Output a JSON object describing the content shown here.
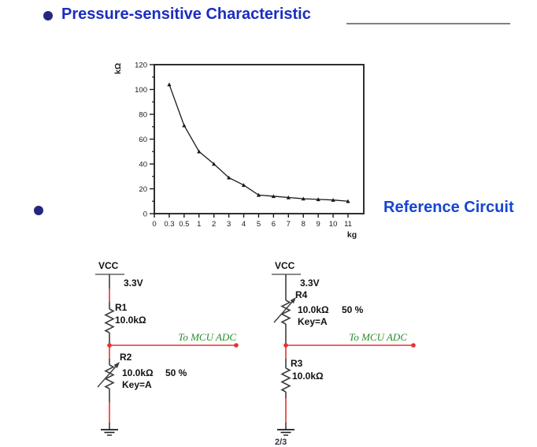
{
  "header": {
    "title": "Pressure-sensitive Characteristic",
    "title_color": "#1b2dc0"
  },
  "section2": {
    "label": "Reference Circuit",
    "label_color": "#1745d2"
  },
  "chart_data": {
    "type": "line",
    "title": "",
    "ylabel": "kΩ",
    "xlabel": "kg",
    "ylim": [
      0,
      120
    ],
    "y_major_step": 20,
    "y_minor_step": 10,
    "grid": false,
    "legend": "none",
    "x_tick_labels": [
      "0",
      "0.3",
      "0.5",
      "1",
      "2",
      "3",
      "4",
      "5",
      "6",
      "7",
      "8",
      "9",
      "10",
      "11"
    ],
    "x": [
      0.3,
      0.5,
      1,
      2,
      3,
      4,
      5,
      6,
      7,
      8,
      9,
      10,
      11
    ],
    "values": [
      104,
      71,
      50,
      40,
      29,
      23,
      15,
      14,
      13,
      12,
      11.5,
      11,
      10
    ],
    "x_axis_note": "ticks evenly spaced (non-linear scale)",
    "line_color": "#1a1a1a"
  },
  "circuits": [
    {
      "vcc_label": "VCC",
      "voltage": "3.3V",
      "top_resistor": {
        "name": "R1",
        "value": "10.0kΩ"
      },
      "bottom_resistor": {
        "name": "R2",
        "value": "10.0kΩ",
        "percent": "50 %",
        "key": "Key=A"
      },
      "adc_label": "To MCU ADC"
    },
    {
      "vcc_label": "VCC",
      "voltage": "3.3V",
      "top_resistor": {
        "name": "R4",
        "value": "10.0kΩ",
        "percent": "50 %",
        "key": "Key=A"
      },
      "bottom_resistor": {
        "name": "R3",
        "value": "10.0kΩ"
      },
      "adc_label": "To MCU ADC"
    }
  ],
  "colors": {
    "wire_dark": "#3d3d3d",
    "wire_red": "#e23333",
    "adc_text_green": "#2a8c2a",
    "bullet_navy": "#23277e"
  },
  "page": {
    "footer_partial": "2/3"
  }
}
